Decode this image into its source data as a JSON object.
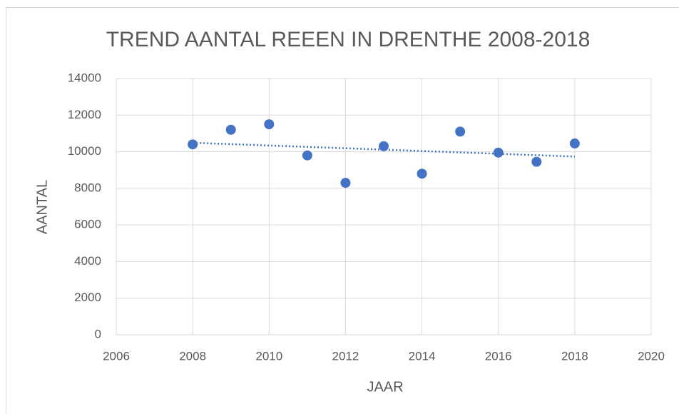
{
  "chart_data": {
    "type": "scatter",
    "title": "TREND AANTAL REEEN IN DRENTHE 2008-2018",
    "x_label": "JAAR",
    "y_label": "AANTAL",
    "series": [
      {
        "name": "Aantal",
        "color": "#4472c4",
        "x": [
          2008,
          2009,
          2010,
          2011,
          2012,
          2013,
          2014,
          2015,
          2016,
          2017,
          2018
        ],
        "values": [
          10400,
          11200,
          11500,
          9800,
          8300,
          10300,
          8800,
          11100,
          9950,
          9450,
          10450
        ]
      }
    ],
    "xlim": [
      2006,
      2020
    ],
    "xticks": [
      2006,
      2008,
      2010,
      2012,
      2014,
      2016,
      2018,
      2020
    ],
    "ylim": [
      0,
      14000
    ],
    "yticks": [
      0,
      2000,
      4000,
      6000,
      8000,
      10000,
      12000,
      14000
    ],
    "grid": true,
    "trendline": true
  }
}
